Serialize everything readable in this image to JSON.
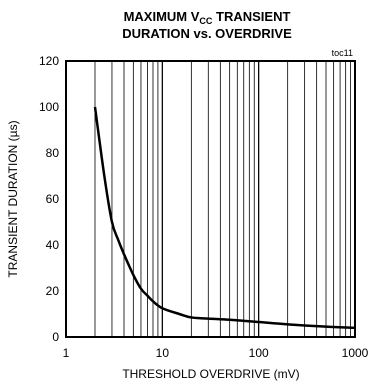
{
  "chart_data": {
    "type": "line",
    "title_line1_main": "MAXIMUM V",
    "title_line1_sub": "CC",
    "title_line1_rest": " TRANSIENT",
    "title_line2": "DURATION vs. OVERDRIVE",
    "tag": "toc11",
    "xlabel": "THRESHOLD OVERDRIVE (mV)",
    "ylabel": "TRANSIENT DURATION (µs)",
    "x_scale": "log",
    "xlim": [
      1,
      1000
    ],
    "ylim": [
      0,
      120
    ],
    "x_ticks": [
      1,
      10,
      100,
      1000
    ],
    "x_tick_labels": [
      "1",
      "10",
      "100",
      "1000"
    ],
    "y_ticks": [
      0,
      20,
      40,
      60,
      80,
      100,
      120
    ],
    "y_tick_labels": [
      "0",
      "20",
      "40",
      "60",
      "80",
      "100",
      "120"
    ],
    "grid": "vertical",
    "line_color": "#000000",
    "x": [
      2,
      2.5,
      3,
      3.5,
      4,
      5,
      6,
      7,
      8,
      10,
      15,
      20,
      30,
      50,
      100,
      200,
      500,
      1000
    ],
    "y": [
      100,
      70,
      50,
      42,
      36,
      27,
      21,
      18,
      15.5,
      12.5,
      10,
      8.5,
      8,
      7.5,
      6.5,
      5.5,
      4.5,
      4
    ]
  }
}
